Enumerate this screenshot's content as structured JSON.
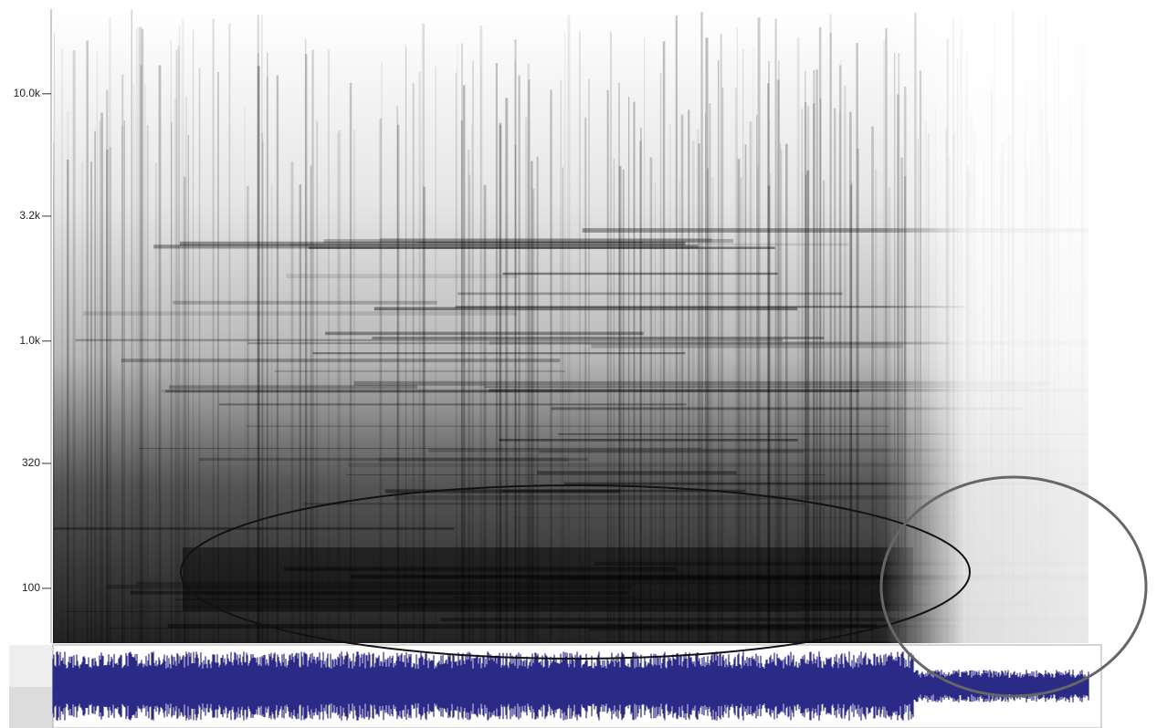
{
  "chart_data": {
    "type": "spectrogram",
    "ylim": [
      60,
      22000
    ],
    "yscale": "log",
    "yticks": [
      {
        "value": 100,
        "label": "100"
      },
      {
        "value": 320,
        "label": "320"
      },
      {
        "value": 1000,
        "label": "1.0k"
      },
      {
        "value": 3200,
        "label": "3.2k"
      },
      {
        "value": 10000,
        "label": "10.0k"
      }
    ],
    "waveform_color": "#2b2a86"
  }
}
